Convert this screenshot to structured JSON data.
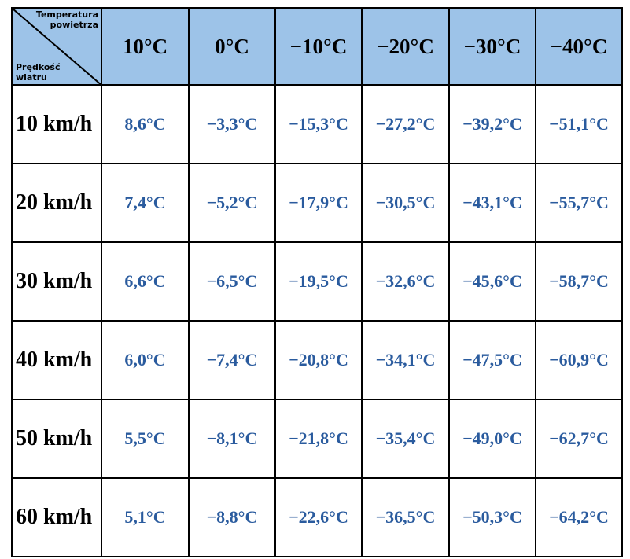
{
  "table": {
    "corner": {
      "top": "Temperatura powietrza",
      "bottom": "Prędkość wiatru"
    },
    "columns": [
      "10°C",
      "0°C",
      "−10°C",
      "−20°C",
      "−30°C",
      "−40°C"
    ],
    "rows": [
      {
        "label": "10 km/h",
        "cells": [
          "8,6°C",
          "−3,3°C",
          "−15,3°C",
          "−27,2°C",
          "−39,2°C",
          "−51,1°C"
        ]
      },
      {
        "label": "20 km/h",
        "cells": [
          "7,4°C",
          "−5,2°C",
          "−17,9°C",
          "−30,5°C",
          "−43,1°C",
          "−55,7°C"
        ]
      },
      {
        "label": "30 km/h",
        "cells": [
          "6,6°C",
          "−6,5°C",
          "−19,5°C",
          "−32,6°C",
          "−45,6°C",
          "−58,7°C"
        ]
      },
      {
        "label": "40 km/h",
        "cells": [
          "6,0°C",
          "−7,4°C",
          "−20,8°C",
          "−34,1°C",
          "−47,5°C",
          "−60,9°C"
        ]
      },
      {
        "label": "50 km/h",
        "cells": [
          "5,5°C",
          "−8,1°C",
          "−21,8°C",
          "−35,4°C",
          "−49,0°C",
          "−62,7°C"
        ]
      },
      {
        "label": "60 km/h",
        "cells": [
          "5,1°C",
          "−8,8°C",
          "−22,6°C",
          "−36,5°C",
          "−50,3°C",
          "−64,2°C"
        ]
      }
    ]
  }
}
